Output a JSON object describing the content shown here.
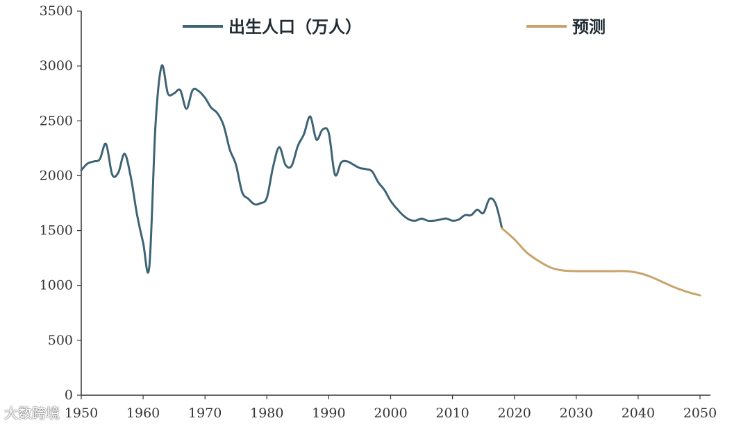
{
  "chart_data": {
    "type": "line",
    "title": "",
    "xlabel": "",
    "ylabel": "",
    "xlim": [
      1950,
      2051
    ],
    "ylim": [
      0,
      3500
    ],
    "x_ticks": [
      1950,
      1960,
      1970,
      1980,
      1990,
      2000,
      2010,
      2020,
      2030,
      2040,
      2050
    ],
    "y_ticks": [
      0,
      500,
      1000,
      1500,
      2000,
      2500,
      3000,
      3500
    ],
    "grid": false,
    "legend_position": "top",
    "series": [
      {
        "name": "出生人口（万人）",
        "color": "#3d6374",
        "x": [
          1950,
          1951,
          1952,
          1953,
          1954,
          1955,
          1956,
          1957,
          1958,
          1959,
          1960,
          1961,
          1962,
          1963,
          1964,
          1965,
          1966,
          1967,
          1968,
          1969,
          1970,
          1971,
          1972,
          1973,
          1974,
          1975,
          1976,
          1977,
          1978,
          1979,
          1980,
          1981,
          1982,
          1983,
          1984,
          1985,
          1986,
          1987,
          1988,
          1989,
          1990,
          1991,
          1992,
          1993,
          1994,
          1995,
          1996,
          1997,
          1998,
          1999,
          2000,
          2001,
          2002,
          2003,
          2004,
          2005,
          2006,
          2007,
          2008,
          2009,
          2010,
          2011,
          2012,
          2013,
          2014,
          2015,
          2016,
          2017,
          2018
        ],
        "values": [
          2050,
          2110,
          2130,
          2150,
          2290,
          2010,
          2030,
          2200,
          1990,
          1650,
          1390,
          1170,
          2460,
          3000,
          2750,
          2750,
          2780,
          2610,
          2780,
          2770,
          2710,
          2620,
          2570,
          2460,
          2240,
          2100,
          1850,
          1790,
          1740,
          1750,
          1800,
          2080,
          2260,
          2100,
          2090,
          2270,
          2380,
          2540,
          2330,
          2420,
          2390,
          2010,
          2120,
          2130,
          2100,
          2070,
          2060,
          2040,
          1940,
          1870,
          1770,
          1700,
          1640,
          1600,
          1590,
          1610,
          1590,
          1590,
          1600,
          1610,
          1590,
          1600,
          1640,
          1640,
          1690,
          1660,
          1790,
          1740,
          1520
        ]
      },
      {
        "name": "预测",
        "color": "#c9a36a",
        "x": [
          2018,
          2020,
          2022,
          2024,
          2026,
          2028,
          2030,
          2032,
          2034,
          2036,
          2038,
          2040,
          2042,
          2044,
          2046,
          2048,
          2050
        ],
        "values": [
          1520,
          1420,
          1300,
          1220,
          1160,
          1135,
          1130,
          1130,
          1130,
          1130,
          1130,
          1115,
          1080,
          1030,
          980,
          940,
          910
        ]
      }
    ]
  },
  "watermark": "大数跨境"
}
